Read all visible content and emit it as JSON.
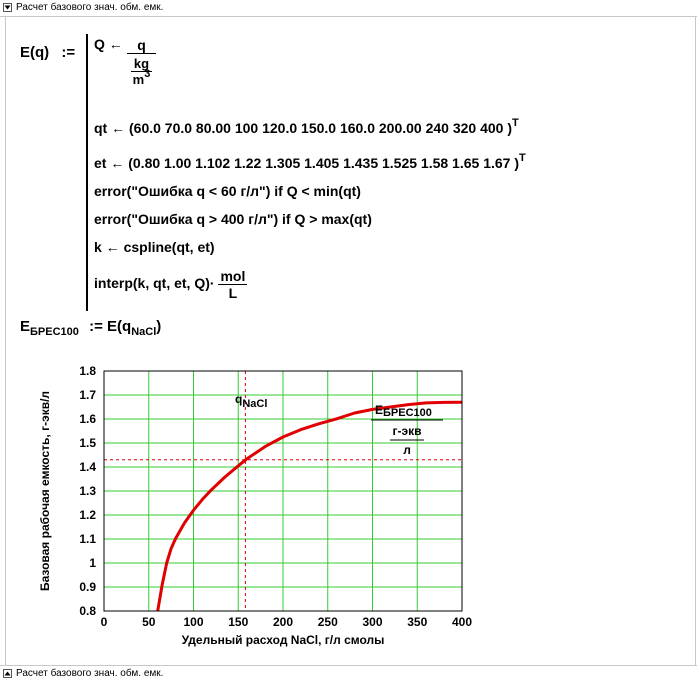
{
  "region": {
    "title": "Расчет базового знач. обм. емк.",
    "footer_title": "Расчет базового знач. обм. емк."
  },
  "func": {
    "name": "E(q)",
    "define": ":=",
    "line1": {
      "var": "Q",
      "arrow": "←",
      "num": "q",
      "den_num": "kg",
      "den_den": "m",
      "den_den_sup": "3"
    },
    "line2": {
      "prefix": "qt ← (60.0   70.0   80.00   100   120.0   150.0   160.0   200.00   240   320   400 )",
      "sup": "T"
    },
    "line3": {
      "prefix": "et ← (0.80   1.00   1.102   1.22   1.305   1.405   1.435   1.525   1.58   1.65   1.67 )",
      "sup": "T"
    },
    "line4": "error(\"Ошибка q < 60 г/л\")   if   Q < min(qt)",
    "line5": "error(\"Ошибка q > 400 г/л\")   if   Q > max(qt)",
    "line6": "k ← cspline(qt, et)",
    "line7": {
      "expr": "interp(k, qt, et, Q)·",
      "num": "mol",
      "den": "L"
    }
  },
  "assign": {
    "lhs": "E",
    "lhs_sub": "БРЕС100",
    "op": ":=",
    "rhs": "E(q",
    "rhs_sub": "NaCl",
    "rhs_close": ")"
  },
  "chart_data": {
    "type": "line",
    "title": "",
    "xlabel": "Удельный расход NaCl, г/л смолы",
    "ylabel": "Базовая рабочая емкость, г-экв/л",
    "xlim": [
      0,
      400
    ],
    "ylim": [
      0.8,
      1.8
    ],
    "xticks": [
      "0",
      "50",
      "100",
      "150",
      "200",
      "250",
      "300",
      "350",
      "400"
    ],
    "yticks": [
      "0.8",
      "0.9",
      "1",
      "1.1",
      "1.2",
      "1.3",
      "1.4",
      "1.5",
      "1.6",
      "1.7",
      "1.8"
    ],
    "grid": true,
    "series": [
      {
        "x": [
          60,
          65,
          70,
          75,
          80,
          90,
          100,
          110,
          120,
          135,
          150,
          160,
          180,
          200,
          220,
          240,
          260,
          280,
          300,
          320,
          340,
          360,
          380,
          400
        ],
        "y": [
          0.8,
          0.91,
          1.0,
          1.06,
          1.102,
          1.168,
          1.22,
          1.265,
          1.305,
          1.358,
          1.405,
          1.435,
          1.485,
          1.525,
          1.556,
          1.58,
          1.601,
          1.625,
          1.64,
          1.65,
          1.66,
          1.667,
          1.669,
          1.67
        ],
        "color": "#e00000"
      }
    ],
    "markers": {
      "vline": {
        "x": 158,
        "label": "q",
        "label_sub": "NaCl",
        "color": "#e00000"
      },
      "hline": {
        "y": 1.43,
        "label": "E",
        "label_sub": "БРЕС100",
        "unit_num": "г-экв",
        "unit_den": "л",
        "color": "#e00000"
      }
    }
  }
}
